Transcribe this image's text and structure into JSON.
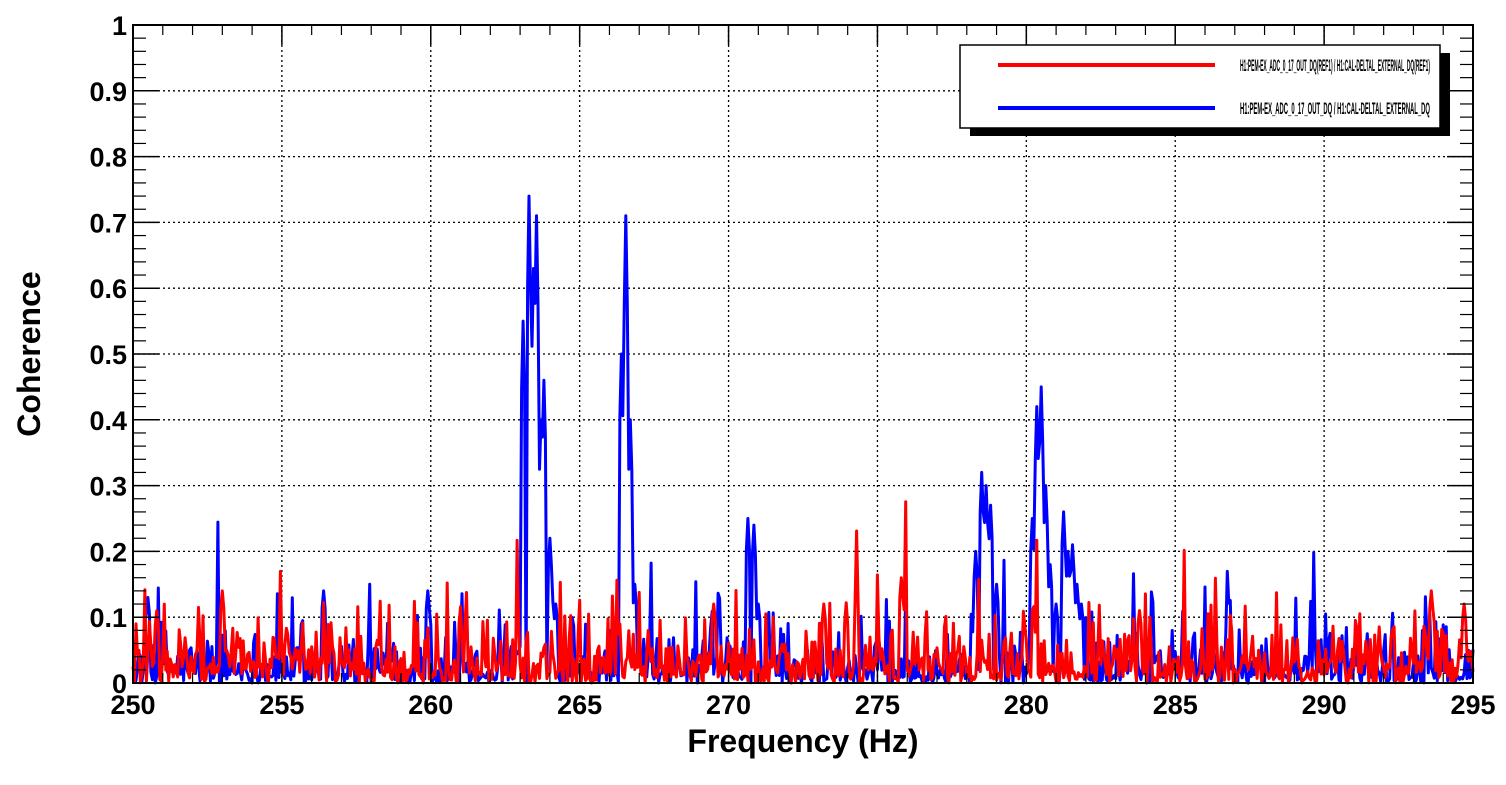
{
  "chart_data": {
    "type": "line",
    "title": "",
    "xlabel": "Frequency (Hz)",
    "ylabel": "Coherence",
    "xlim": [
      250,
      295
    ],
    "ylim": [
      0,
      1
    ],
    "x_ticks": [
      "250",
      "255",
      "260",
      "265",
      "270",
      "275",
      "280",
      "285",
      "290",
      "295"
    ],
    "y_ticks": [
      "0",
      "0.1",
      "0.2",
      "0.3",
      "0.4",
      "0.5",
      "0.6",
      "0.7",
      "0.8",
      "0.9",
      "1"
    ],
    "grid": true,
    "legend_position": "top-right",
    "series": [
      {
        "name": "H1:PEM-EX_ADC_0_17_OUT_DQ / H1:CAL-DELTAL_EXTERNAL_DQ",
        "color": "#0000ff",
        "noise_level": 0.03,
        "peaks": [
          {
            "x": 250.5,
            "y": 0.13
          },
          {
            "x": 256.4,
            "y": 0.14
          },
          {
            "x": 259.9,
            "y": 0.14
          },
          {
            "x": 263.1,
            "y": 0.55
          },
          {
            "x": 263.3,
            "y": 0.74
          },
          {
            "x": 263.45,
            "y": 0.63
          },
          {
            "x": 263.55,
            "y": 0.71
          },
          {
            "x": 263.7,
            "y": 0.4
          },
          {
            "x": 263.8,
            "y": 0.46
          },
          {
            "x": 264.0,
            "y": 0.22
          },
          {
            "x": 264.2,
            "y": 0.12
          },
          {
            "x": 266.4,
            "y": 0.5
          },
          {
            "x": 266.55,
            "y": 0.71
          },
          {
            "x": 266.7,
            "y": 0.4
          },
          {
            "x": 266.85,
            "y": 0.15
          },
          {
            "x": 270.65,
            "y": 0.25
          },
          {
            "x": 270.85,
            "y": 0.24
          },
          {
            "x": 271.0,
            "y": 0.12
          },
          {
            "x": 278.3,
            "y": 0.2
          },
          {
            "x": 278.5,
            "y": 0.32
          },
          {
            "x": 278.65,
            "y": 0.3
          },
          {
            "x": 278.8,
            "y": 0.27
          },
          {
            "x": 279.0,
            "y": 0.15
          },
          {
            "x": 280.2,
            "y": 0.25
          },
          {
            "x": 280.35,
            "y": 0.42
          },
          {
            "x": 280.5,
            "y": 0.45
          },
          {
            "x": 280.65,
            "y": 0.3
          },
          {
            "x": 280.8,
            "y": 0.18
          },
          {
            "x": 281.0,
            "y": 0.12
          },
          {
            "x": 281.25,
            "y": 0.26
          },
          {
            "x": 281.4,
            "y": 0.2
          },
          {
            "x": 281.55,
            "y": 0.21
          },
          {
            "x": 281.7,
            "y": 0.15
          },
          {
            "x": 281.85,
            "y": 0.12
          }
        ]
      },
      {
        "name": "H1:PEM-EX_ADC_0_17_OUT_DQ(REF1) / H1:CAL-DELTAL_EXTERNAL_DQ(REF1)",
        "color": "#ff0000",
        "noise_level": 0.035,
        "peaks": [
          {
            "x": 250.8,
            "y": 0.11
          },
          {
            "x": 253.0,
            "y": 0.14
          },
          {
            "x": 275.8,
            "y": 0.16
          },
          {
            "x": 269.5,
            "y": 0.12
          },
          {
            "x": 283.8,
            "y": 0.11
          },
          {
            "x": 293.6,
            "y": 0.14
          },
          {
            "x": 294.7,
            "y": 0.12
          },
          {
            "x": 273.2,
            "y": 0.12
          }
        ]
      }
    ]
  }
}
